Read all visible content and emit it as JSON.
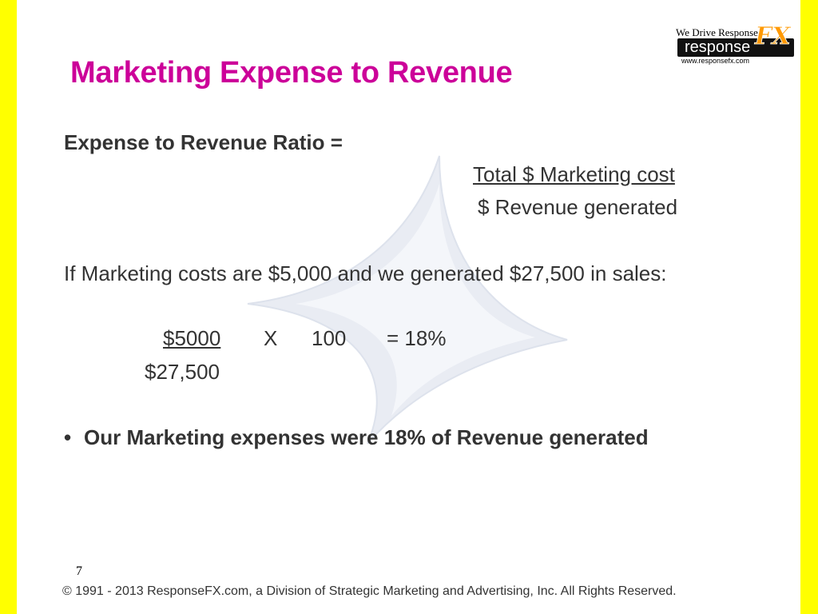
{
  "colors": {
    "accent_yellow": "#ffff00",
    "title_magenta": "#cc0099",
    "body_text": "#333333"
  },
  "logo": {
    "tagline": "We Drive Response!",
    "wordmark": "response",
    "fx_mark": "FX",
    "url": "www.responsefx.com"
  },
  "slide": {
    "title": "Marketing Expense to Revenue",
    "formula_heading": "Expense to Revenue Ratio =",
    "formula_numerator": "Total $ Marketing cost",
    "formula_denominator": "$ Revenue generated",
    "example_sentence": "If Marketing costs are $5,000 and we generated $27,500 in sales:",
    "calc_numerator": "$5000",
    "calc_operator": "X",
    "calc_multiplier": "100",
    "calc_result": "= 18%",
    "calc_denominator": "$27,500",
    "bullet_symbol": "•",
    "bullet_text": "Our Marketing expenses were 18% of Revenue generated",
    "page_number": "7",
    "footer": "© 1991 - 2013 ResponseFX.com, a Division of Strategic Marketing and Advertising, Inc. All Rights Reserved."
  }
}
